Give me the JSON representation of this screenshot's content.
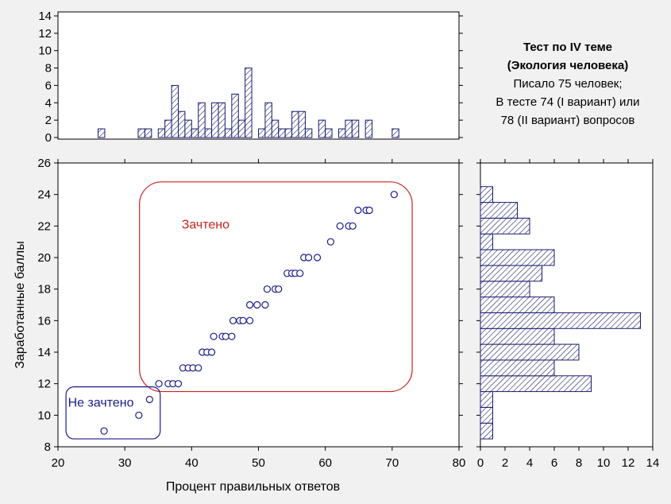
{
  "info": {
    "title_line1": "Тест по IV теме",
    "title_line2": "(Экология человека)",
    "line3": "Писало 75 человек;",
    "line4": "В тесте 74 (I вариант) или",
    "line5": "78 (II вариант) вопросов"
  },
  "colors": {
    "background": "#f1f1f1",
    "plot_area": "#ffffff",
    "bar_stroke": "#1a1a6e",
    "points": "#1a1a8c",
    "passed_region": "#cc2222",
    "failed_region": "#1a1a8c"
  },
  "chart_data": [
    {
      "type": "scatter",
      "xlabel": "Процент правильных ответов",
      "ylabel": "Заработанные баллы",
      "xlim": [
        20,
        80
      ],
      "ylim": [
        8,
        26
      ],
      "xticks": [
        20,
        30,
        40,
        50,
        60,
        70,
        80
      ],
      "yticks": [
        8,
        10,
        12,
        14,
        16,
        18,
        20,
        22,
        24,
        26
      ],
      "grid": false,
      "points": [
        [
          26.9,
          9
        ],
        [
          32.1,
          10
        ],
        [
          33.7,
          11
        ],
        [
          35.1,
          12
        ],
        [
          36.5,
          12
        ],
        [
          37.2,
          12
        ],
        [
          38.0,
          12
        ],
        [
          38.7,
          13
        ],
        [
          39.5,
          13
        ],
        [
          40.2,
          13
        ],
        [
          41.0,
          13
        ],
        [
          41.6,
          14
        ],
        [
          42.3,
          14
        ],
        [
          43.0,
          14
        ],
        [
          43.3,
          15
        ],
        [
          44.6,
          15
        ],
        [
          45.1,
          15
        ],
        [
          46.0,
          15
        ],
        [
          46.2,
          16
        ],
        [
          47.2,
          16
        ],
        [
          47.7,
          16
        ],
        [
          48.7,
          16
        ],
        [
          48.7,
          17
        ],
        [
          49.8,
          17
        ],
        [
          51.0,
          17
        ],
        [
          51.3,
          18
        ],
        [
          52.5,
          18
        ],
        [
          53.0,
          18
        ],
        [
          54.3,
          19
        ],
        [
          55.0,
          19
        ],
        [
          55.5,
          19
        ],
        [
          56.2,
          19
        ],
        [
          56.8,
          20
        ],
        [
          57.5,
          20
        ],
        [
          58.8,
          20
        ],
        [
          60.8,
          21
        ],
        [
          62.2,
          22
        ],
        [
          63.5,
          22
        ],
        [
          64.1,
          22
        ],
        [
          64.9,
          23
        ],
        [
          66.1,
          23
        ],
        [
          66.6,
          23
        ],
        [
          70.3,
          24
        ]
      ],
      "annotations": [
        {
          "text": "Зачтено",
          "color": "#cc2222",
          "x": 38.5,
          "y": 22.1
        },
        {
          "text": "Не зачтено",
          "color": "#1a1a8c",
          "x": 21.5,
          "y": 10.8
        }
      ],
      "regions": [
        {
          "label": "Зачтено",
          "x_range": [
            32.2,
            73.0
          ],
          "y_range": [
            11.5,
            24.8
          ],
          "color": "#cc2222"
        },
        {
          "label": "Не зачтено",
          "x_range": [
            21.2,
            35.3
          ],
          "y_range": [
            8.5,
            11.8
          ],
          "color": "#1a1a8c"
        }
      ]
    },
    {
      "type": "bar",
      "orientation": "vertical",
      "description_axis": "Процент правильных ответов",
      "xlim": [
        20,
        80
      ],
      "ylim": [
        0,
        14
      ],
      "yticks": [
        0,
        2,
        4,
        6,
        8,
        10,
        12,
        14
      ],
      "bin_width": 1,
      "bins": [
        [
          26.5,
          1
        ],
        [
          32.5,
          1
        ],
        [
          33.5,
          1
        ],
        [
          35.5,
          1
        ],
        [
          36.5,
          2
        ],
        [
          37.5,
          6
        ],
        [
          38.5,
          3
        ],
        [
          39.5,
          2
        ],
        [
          40.5,
          1
        ],
        [
          41.5,
          4
        ],
        [
          42.5,
          1
        ],
        [
          43.5,
          4
        ],
        [
          44.5,
          4
        ],
        [
          45.5,
          1
        ],
        [
          46.5,
          5
        ],
        [
          47.5,
          2
        ],
        [
          48.5,
          8
        ],
        [
          50.5,
          1
        ],
        [
          51.5,
          4
        ],
        [
          52.5,
          2
        ],
        [
          53.5,
          1
        ],
        [
          54.5,
          1
        ],
        [
          55.5,
          3
        ],
        [
          56.5,
          3
        ],
        [
          57.5,
          1
        ],
        [
          59.5,
          2
        ],
        [
          60.5,
          1
        ],
        [
          62.5,
          1
        ],
        [
          63.5,
          2
        ],
        [
          64.5,
          2
        ],
        [
          66.5,
          2
        ],
        [
          70.5,
          1
        ]
      ]
    },
    {
      "type": "bar",
      "orientation": "horizontal",
      "description_axis": "Заработанные баллы",
      "xlim": [
        0,
        14
      ],
      "xticks": [
        0,
        2,
        4,
        6,
        8,
        10,
        12,
        14
      ],
      "ylim": [
        8,
        26
      ],
      "bins": [
        [
          9,
          1
        ],
        [
          10,
          1
        ],
        [
          11,
          1
        ],
        [
          12,
          9
        ],
        [
          13,
          6
        ],
        [
          14,
          8
        ],
        [
          15,
          6
        ],
        [
          16,
          13
        ],
        [
          17,
          6
        ],
        [
          18,
          4
        ],
        [
          19,
          5
        ],
        [
          20,
          6
        ],
        [
          21,
          1
        ],
        [
          22,
          4
        ],
        [
          23,
          3
        ],
        [
          24,
          1
        ]
      ]
    }
  ]
}
